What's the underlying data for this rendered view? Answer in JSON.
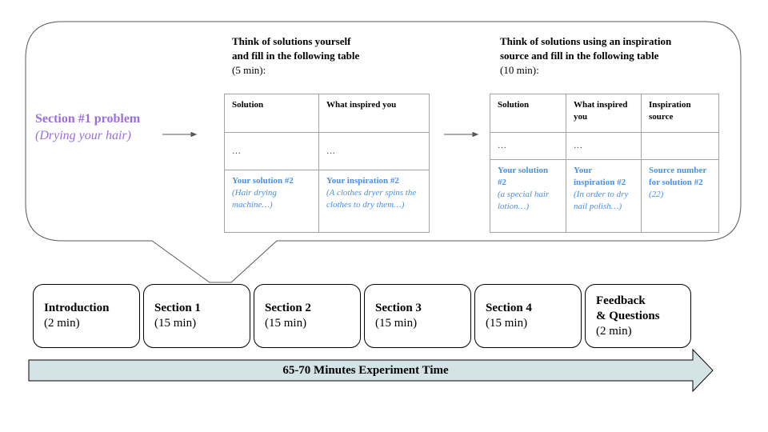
{
  "problem": {
    "title": "Section #1 problem",
    "subtitle": "(Drying your hair)"
  },
  "instructions": {
    "left": {
      "line1": "Think of solutions yourself",
      "line2": "and fill in the following table",
      "duration": "(5 min):"
    },
    "right": {
      "line1": "Think of solutions using an inspiration",
      "line2": "source and fill in the following table",
      "duration": "(10 min):"
    }
  },
  "table_left": {
    "headers": [
      "Solution",
      "What inspired you"
    ],
    "ellipsis": [
      "…",
      "…"
    ],
    "example": [
      {
        "label": "Your solution #2",
        "example": "(Hair drying machine…)"
      },
      {
        "label": "Your inspiration #2",
        "example": "(A clothes dryer spins the clothes to dry them…)"
      }
    ]
  },
  "table_right": {
    "headers": [
      "Solution",
      "What inspired you",
      "Inspiration source"
    ],
    "ellipsis": [
      "…",
      "…",
      ""
    ],
    "example": [
      {
        "label": "Your solution #2",
        "example": "(a special hair lotion…)"
      },
      {
        "label": "Your inspiration #2",
        "example": "(In order to dry nail polish…)"
      },
      {
        "label": "Source number for solution #2",
        "example": "(22)"
      }
    ]
  },
  "timeline": {
    "label": "65-70 Minutes Experiment Time",
    "steps": [
      {
        "title": "Introduction",
        "duration": "(2 min)"
      },
      {
        "title": "Section 1",
        "duration": "(15 min)"
      },
      {
        "title": "Section 2",
        "duration": "(15 min)"
      },
      {
        "title": "Section 3",
        "duration": "(15 min)"
      },
      {
        "title": "Section 4",
        "duration": "(15 min)"
      },
      {
        "title": "Feedback\n& Questions",
        "duration": "(2 min)"
      }
    ]
  },
  "colors": {
    "problem": "#9b6ee0",
    "example_text": "#4a90e2",
    "timeline_fill": "#d3e3e6",
    "table_border": "#a3a3a3"
  }
}
